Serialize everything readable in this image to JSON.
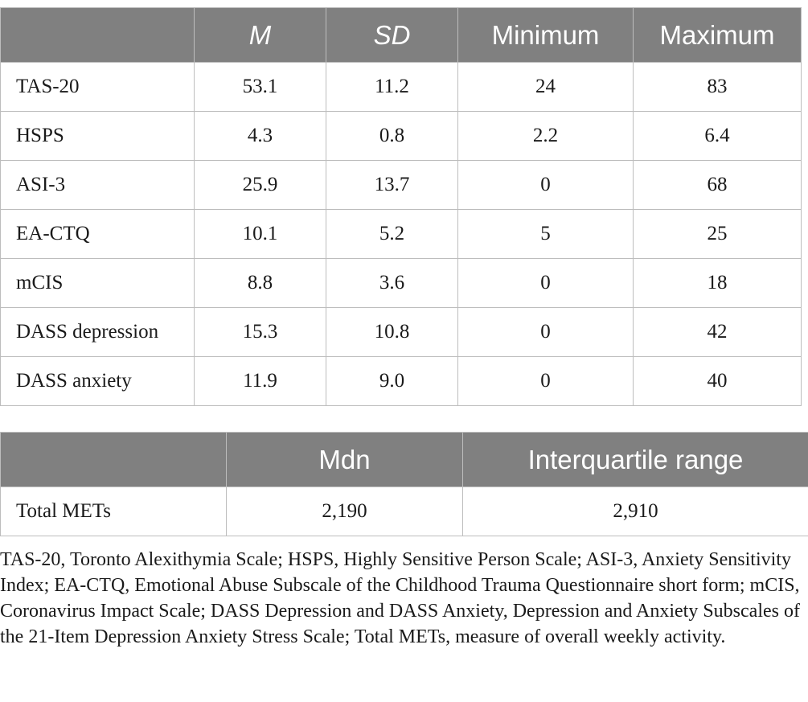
{
  "stats_table": {
    "headers": [
      "",
      "M",
      "SD",
      "Minimum",
      "Maximum"
    ],
    "rows": [
      {
        "label": "TAS-20",
        "m": "53.1",
        "sd": "11.2",
        "min": "24",
        "max": "83"
      },
      {
        "label": "HSPS",
        "m": "4.3",
        "sd": "0.8",
        "min": "2.2",
        "max": "6.4"
      },
      {
        "label": "ASI-3",
        "m": "25.9",
        "sd": "13.7",
        "min": "0",
        "max": "68"
      },
      {
        "label": "EA-CTQ",
        "m": "10.1",
        "sd": "5.2",
        "min": "5",
        "max": "25"
      },
      {
        "label": "mCIS",
        "m": "8.8",
        "sd": "3.6",
        "min": "0",
        "max": "18"
      },
      {
        "label": "DASS depression",
        "m": "15.3",
        "sd": "10.8",
        "min": "0",
        "max": "42"
      },
      {
        "label": "DASS anxiety",
        "m": "11.9",
        "sd": "9.0",
        "min": "0",
        "max": "40"
      }
    ]
  },
  "mets_table": {
    "headers": [
      "",
      "Mdn",
      "Interquartile range"
    ],
    "rows": [
      {
        "label": "Total METs",
        "mdn": "2,190",
        "iqr": "2,910"
      }
    ]
  },
  "footnote": "TAS-20, Toronto Alexithymia Scale; HSPS, Highly Sensitive Person Scale; ASI-3, Anxiety Sensitivity Index; EA-CTQ, Emotional Abuse Subscale of the Childhood Trauma Questionnaire short form; mCIS, Coronavirus Impact Scale; DASS Depression and DASS Anxiety, Depression and Anxiety Subscales of the 21-Item Depression Anxiety Stress Scale; Total METs, measure of overall weekly activity."
}
